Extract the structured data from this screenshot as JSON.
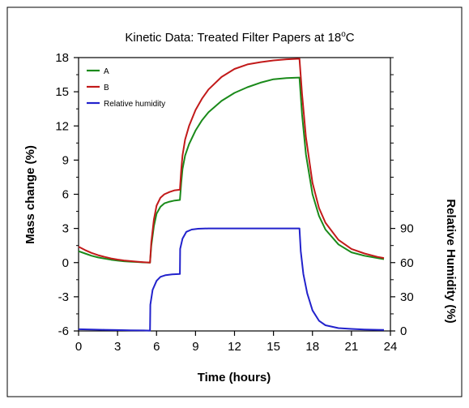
{
  "chart_data": {
    "type": "line",
    "title": "Kinetic Data: Treated Filter Papers at 18",
    "title_superscript": "o",
    "title_suffix": "C",
    "xlabel": "Time (hours)",
    "ylabel": "Mass change (%)",
    "y2label": "Relative Humidity (%)",
    "xlim": [
      0,
      24
    ],
    "ylim": [
      -6,
      18
    ],
    "y2lim": [
      0,
      90
    ],
    "x_ticks": [
      "0",
      "3",
      "6",
      "9",
      "12",
      "15",
      "18",
      "21",
      "24"
    ],
    "y_ticks": [
      "-6",
      "-3",
      "0",
      "3",
      "6",
      "9",
      "12",
      "15",
      "18"
    ],
    "y2_ticks": [
      "0",
      "30",
      "60",
      "90"
    ],
    "grid": false,
    "legend_position": "top-left",
    "series": [
      {
        "name": "A",
        "axis": "left",
        "color": "#1a8a1a",
        "x": [
          0,
          0.5,
          1,
          1.5,
          2,
          2.5,
          3,
          3.5,
          4,
          4.5,
          5,
          5.5,
          5.6,
          5.8,
          6.0,
          6.3,
          6.6,
          7.0,
          7.4,
          7.8,
          7.9,
          8.0,
          8.2,
          8.5,
          9.0,
          9.5,
          10,
          11,
          12,
          13,
          14,
          15,
          16,
          17.0,
          17.2,
          17.5,
          18,
          18.5,
          19,
          20,
          21,
          22,
          23,
          23.5
        ],
        "y": [
          1.0,
          0.8,
          0.6,
          0.45,
          0.35,
          0.25,
          0.18,
          0.12,
          0.08,
          0.05,
          0.02,
          0.0,
          1.5,
          3.2,
          4.3,
          4.9,
          5.2,
          5.35,
          5.45,
          5.5,
          7.0,
          8.2,
          9.4,
          10.4,
          11.6,
          12.5,
          13.2,
          14.2,
          14.9,
          15.4,
          15.8,
          16.1,
          16.2,
          16.25,
          13.0,
          9.5,
          6.0,
          4.1,
          2.9,
          1.6,
          0.9,
          0.6,
          0.4,
          0.3
        ]
      },
      {
        "name": "B",
        "axis": "left",
        "color": "#c21a1a",
        "x": [
          0,
          0.5,
          1,
          1.5,
          2,
          2.5,
          3,
          3.5,
          4,
          4.5,
          5,
          5.5,
          5.6,
          5.8,
          6.0,
          6.3,
          6.6,
          7.0,
          7.4,
          7.8,
          7.9,
          8.0,
          8.2,
          8.5,
          9.0,
          9.5,
          10,
          11,
          12,
          13,
          14,
          15,
          16,
          17.0,
          17.2,
          17.5,
          18,
          18.5,
          19,
          20,
          21,
          22,
          23,
          23.5
        ],
        "y": [
          1.4,
          1.1,
          0.85,
          0.65,
          0.5,
          0.37,
          0.27,
          0.19,
          0.13,
          0.08,
          0.04,
          0.0,
          1.8,
          3.8,
          5.0,
          5.7,
          6.0,
          6.2,
          6.35,
          6.4,
          8.1,
          9.4,
          10.8,
          12.0,
          13.4,
          14.4,
          15.2,
          16.3,
          17.0,
          17.4,
          17.6,
          17.75,
          17.85,
          17.9,
          14.8,
          11.0,
          7.0,
          4.8,
          3.5,
          2.0,
          1.2,
          0.8,
          0.5,
          0.4
        ]
      },
      {
        "name": "Relative humidity",
        "axis": "right",
        "color": "#2222cc",
        "x": [
          0,
          1,
          2,
          3,
          4,
          5,
          5.5,
          5.52,
          5.7,
          6.0,
          6.3,
          6.7,
          7.2,
          7.8,
          7.82,
          8.0,
          8.3,
          8.7,
          9.2,
          10,
          11,
          12,
          14,
          16,
          17.0,
          17.1,
          17.3,
          17.6,
          18,
          18.5,
          19,
          20,
          21,
          22,
          23,
          23.5
        ],
        "y": [
          1.5,
          1.2,
          1.0,
          0.8,
          0.6,
          0.4,
          0.3,
          23.0,
          36.0,
          44.0,
          47.5,
          49.0,
          49.7,
          50.0,
          72.0,
          81.0,
          87.0,
          89.0,
          89.7,
          90.0,
          90.0,
          90.0,
          90.0,
          90.0,
          90.0,
          70.0,
          50.0,
          33.0,
          18.0,
          9.0,
          5.0,
          2.5,
          1.8,
          1.3,
          1.0,
          0.9
        ]
      }
    ]
  }
}
